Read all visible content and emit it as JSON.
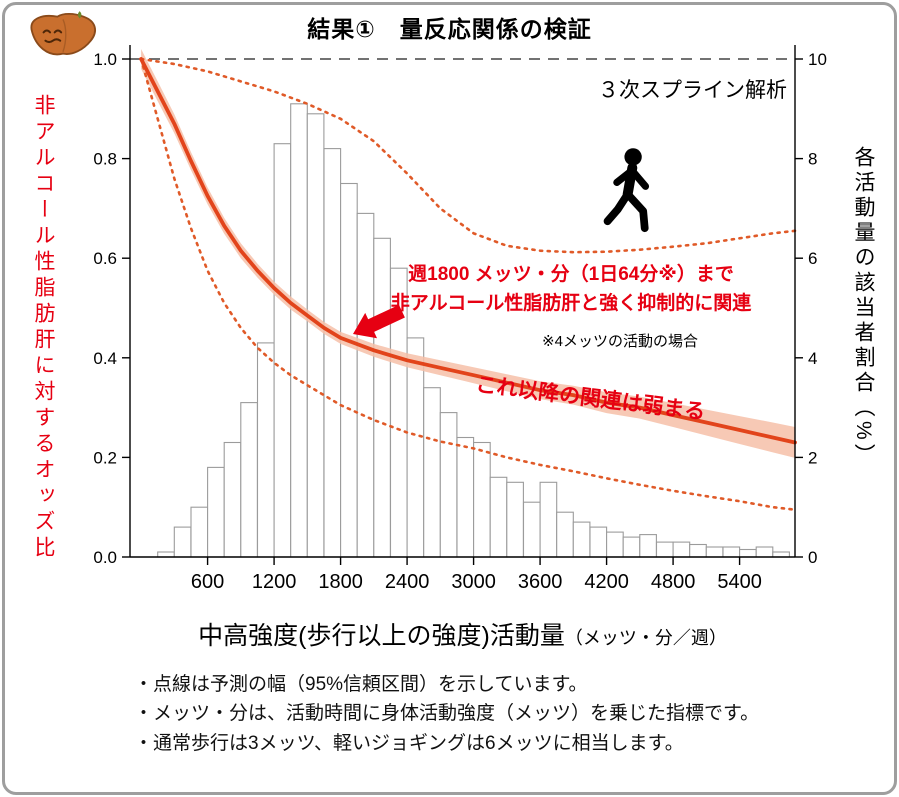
{
  "header": {
    "title": "結果①　量反応関係の検証"
  },
  "axes": {
    "left_label": "非アルコール性脂肪肝に対するオッズ比",
    "right_label": "各活動量の該当者割合（%）",
    "x_label_main": "中高強度(歩行以上の強度)活動量",
    "x_label_unit": "（メッツ・分／週）",
    "left_ticks": [
      1.0,
      0.8,
      0.6,
      0.4,
      0.2,
      0.0
    ],
    "right_ticks": [
      10,
      8,
      6,
      4,
      2,
      0
    ],
    "x_ticks": [
      600,
      1200,
      1800,
      2400,
      3000,
      3600,
      4200,
      4800,
      5400
    ]
  },
  "annotations": {
    "method": "３次スプライン解析",
    "highlight_line1": "週1800 メッツ・分（1日64分※）まで",
    "highlight_line2": "非アルコール性脂肪肝と強く抑制的に関連",
    "note": "※4メッツの活動の場合",
    "weaker": "これ以降の関連は弱まる"
  },
  "footnotes": [
    "・点線は予測の幅（95%信頼区間）を示しています。",
    "・メッツ・分は、活動時間に身体活動強度（メッツ）を乗じた指標です。",
    "・通常歩行は3メッツ、軽いジョギングは6メッツに相当します。"
  ],
  "colors": {
    "curve": "#e2441b",
    "band": "#f6c0a8",
    "ci_dotted": "#e05a28",
    "text_red": "#e60012",
    "arrow": "#e60012",
    "histogram_stroke": "#9b9b9b",
    "frame_border": "#9e9e9e"
  },
  "chart_data": {
    "type": "line",
    "title": "結果①　量反応関係の検証",
    "xlabel": "中高強度(歩行以上の強度)活動量（メッツ・分／週）",
    "ylabel_left": "非アルコール性脂肪肝に対するオッズ比",
    "ylabel_right": "各活動量の該当者割合（%）",
    "x_domain": [
      -100,
      5900
    ],
    "y_left_range": [
      0,
      1.0
    ],
    "y_right_range": [
      0,
      10
    ],
    "reference_line_y": 1.0,
    "grid": false,
    "spline": {
      "x": [
        0,
        150,
        300,
        450,
        600,
        750,
        900,
        1050,
        1200,
        1350,
        1500,
        1650,
        1800,
        2100,
        2400,
        2700,
        3000,
        3300,
        3600,
        3900,
        4200,
        4500,
        4800,
        5100,
        5400,
        5700,
        5900
      ],
      "odds_ratio": [
        1.0,
        0.935,
        0.87,
        0.795,
        0.725,
        0.665,
        0.615,
        0.575,
        0.54,
        0.51,
        0.485,
        0.46,
        0.44,
        0.415,
        0.395,
        0.38,
        0.365,
        0.35,
        0.335,
        0.325,
        0.31,
        0.3,
        0.285,
        0.27,
        0.255,
        0.24,
        0.23
      ],
      "band_halfwidth": [
        0.02,
        0.02,
        0.019,
        0.018,
        0.017,
        0.016,
        0.015,
        0.014,
        0.013,
        0.013,
        0.012,
        0.012,
        0.012,
        0.013,
        0.014,
        0.015,
        0.016,
        0.017,
        0.018,
        0.019,
        0.021,
        0.022,
        0.024,
        0.026,
        0.028,
        0.03,
        0.031
      ]
    },
    "ci_upper": {
      "x": [
        0,
        300,
        600,
        900,
        1200,
        1500,
        1800,
        2100,
        2400,
        2700,
        3000,
        3300,
        3600,
        3900,
        4200,
        4500,
        4800,
        5100,
        5400,
        5700,
        5900
      ],
      "y": [
        1.0,
        0.99,
        0.975,
        0.955,
        0.935,
        0.91,
        0.88,
        0.835,
        0.77,
        0.7,
        0.65,
        0.625,
        0.615,
        0.612,
        0.613,
        0.617,
        0.623,
        0.63,
        0.64,
        0.65,
        0.655
      ]
    },
    "ci_lower": {
      "x": [
        0,
        150,
        300,
        450,
        600,
        750,
        900,
        1050,
        1200,
        1350,
        1500,
        1800,
        2100,
        2400,
        2700,
        3000,
        3300,
        3600,
        3900,
        4200,
        4500,
        4800,
        5100,
        5400,
        5700,
        5900
      ],
      "y": [
        1.0,
        0.88,
        0.76,
        0.66,
        0.575,
        0.51,
        0.46,
        0.42,
        0.39,
        0.365,
        0.345,
        0.305,
        0.275,
        0.25,
        0.232,
        0.218,
        0.2,
        0.185,
        0.172,
        0.158,
        0.145,
        0.133,
        0.122,
        0.112,
        0.1,
        0.095
      ]
    },
    "histogram": {
      "axis": "right",
      "unit": "%",
      "bin_width": 150,
      "centers": [
        225,
        375,
        525,
        675,
        825,
        975,
        1125,
        1275,
        1425,
        1575,
        1725,
        1875,
        2025,
        2175,
        2325,
        2475,
        2625,
        2775,
        2925,
        3075,
        3225,
        3375,
        3525,
        3675,
        3825,
        3975,
        4125,
        4275,
        4425,
        4575,
        4725,
        4875,
        5025,
        5175,
        5325,
        5475,
        5625,
        5775
      ],
      "percent": [
        0.1,
        0.6,
        1.0,
        1.8,
        2.3,
        3.1,
        4.3,
        8.3,
        9.1,
        8.9,
        8.2,
        7.5,
        6.9,
        6.4,
        5.8,
        4.4,
        3.4,
        2.9,
        2.4,
        2.3,
        1.6,
        1.5,
        1.1,
        1.5,
        0.9,
        0.7,
        0.6,
        0.5,
        0.4,
        0.45,
        0.3,
        0.3,
        0.25,
        0.2,
        0.2,
        0.15,
        0.2,
        0.1
      ]
    },
    "highlight": {
      "threshold_x": 1800,
      "odds_at_threshold": 0.44
    }
  }
}
